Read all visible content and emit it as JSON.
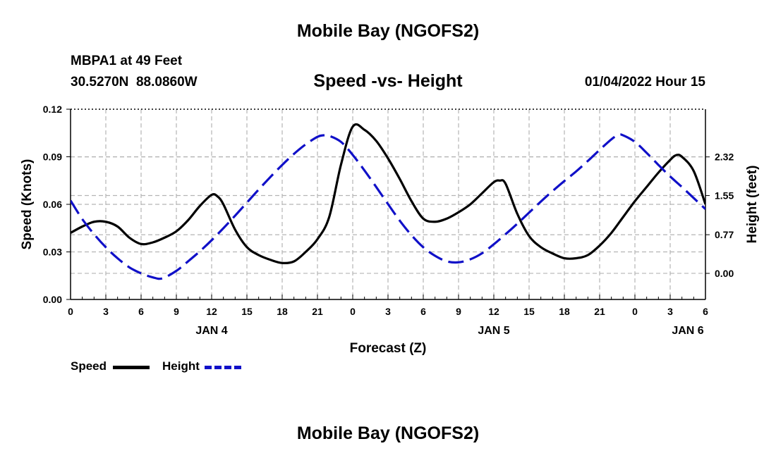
{
  "header": {
    "title": "Mobile Bay (NGOFS2)",
    "station": "MBPA1 at 49 Feet",
    "coords": "30.5270N  88.0860W",
    "chart_title": "Speed -vs- Height",
    "datetime": "01/04/2022 Hour 15"
  },
  "legend": {
    "speed_label": "Speed",
    "height_label": "Height"
  },
  "footer": {
    "title": "Mobile Bay (NGOFS2)"
  },
  "colors": {
    "speed": "#000000",
    "height": "#1010c8",
    "grid": "#b4b4b4"
  },
  "chart_data": {
    "type": "line",
    "title": "Speed -vs- Height",
    "xlabel": "Forecast (Z)",
    "ylabel": "Speed (Knots)",
    "y2label": "Height (feet)",
    "xlim": [
      0,
      54
    ],
    "x_ticks": [
      0,
      3,
      6,
      9,
      12,
      15,
      18,
      21,
      24,
      27,
      30,
      33,
      36,
      39,
      42,
      45,
      48,
      51,
      54
    ],
    "x_tick_labels": [
      "0",
      "3",
      "6",
      "9",
      "12",
      "15",
      "18",
      "21",
      "0",
      "3",
      "6",
      "9",
      "12",
      "15",
      "18",
      "21",
      "0",
      "3",
      "6"
    ],
    "date_labels": [
      {
        "x": 12,
        "label": "JAN 4"
      },
      {
        "x": 36,
        "label": "JAN 5"
      },
      {
        "x": 52.5,
        "label": "JAN 6"
      }
    ],
    "ylim": [
      0,
      0.12
    ],
    "y_ticks": [
      0,
      0.03,
      0.06,
      0.09,
      0.12
    ],
    "y_tick_labels": [
      "0.00",
      "0.03",
      "0.06",
      "0.09",
      "0.12"
    ],
    "y2lim": [
      -0.52,
      3.27
    ],
    "y2_ticks": [
      0.0,
      0.77,
      1.55,
      2.32
    ],
    "y2_tick_labels": [
      "0.00",
      "0.77",
      "1.55",
      "2.32"
    ],
    "grid": true,
    "legend_position": "bottom-left",
    "series": [
      {
        "name": "Speed",
        "axis": "left",
        "style": "solid",
        "x": [
          0,
          1,
          2,
          3,
          4,
          5,
          6,
          7,
          8,
          9,
          10,
          11,
          12,
          12.5,
          13,
          14,
          15,
          16,
          17,
          18,
          19,
          20,
          21,
          22,
          23,
          24,
          25,
          26,
          27,
          28,
          29,
          30,
          31,
          32,
          33,
          34,
          35,
          36,
          36.5,
          37,
          38,
          39,
          40,
          41,
          42,
          43,
          44,
          45,
          46,
          47,
          48,
          49,
          50,
          51,
          51.5,
          52,
          53,
          54
        ],
        "values": [
          0.042,
          0.046,
          0.049,
          0.049,
          0.046,
          0.039,
          0.035,
          0.036,
          0.039,
          0.043,
          0.05,
          0.059,
          0.066,
          0.065,
          0.06,
          0.044,
          0.033,
          0.028,
          0.025,
          0.023,
          0.024,
          0.03,
          0.038,
          0.052,
          0.085,
          0.109,
          0.107,
          0.1,
          0.089,
          0.076,
          0.062,
          0.051,
          0.049,
          0.051,
          0.055,
          0.06,
          0.067,
          0.074,
          0.075,
          0.073,
          0.054,
          0.04,
          0.033,
          0.029,
          0.026,
          0.026,
          0.028,
          0.034,
          0.042,
          0.052,
          0.062,
          0.071,
          0.08,
          0.088,
          0.091,
          0.09,
          0.081,
          0.06
        ]
      },
      {
        "name": "Height",
        "axis": "right",
        "style": "dashed",
        "x": [
          0,
          1,
          2,
          3,
          4,
          5,
          6,
          7,
          7.8,
          9,
          10,
          11,
          12,
          13,
          14,
          15,
          16,
          17,
          18,
          19,
          20,
          21,
          21.5,
          22,
          23,
          24,
          25,
          26,
          27,
          28,
          29,
          30,
          31,
          32,
          33,
          34,
          35,
          36,
          37,
          38,
          39,
          40,
          41,
          42,
          43,
          44,
          45,
          46,
          46.6,
          47,
          48,
          49,
          50,
          51,
          52,
          53,
          54
        ],
        "values": [
          1.45,
          1.08,
          0.78,
          0.52,
          0.3,
          0.12,
          0.0,
          -0.08,
          -0.1,
          0.05,
          0.24,
          0.44,
          0.66,
          0.9,
          1.15,
          1.41,
          1.67,
          1.92,
          2.16,
          2.38,
          2.57,
          2.72,
          2.75,
          2.74,
          2.62,
          2.36,
          2.05,
          1.72,
          1.38,
          1.05,
          0.76,
          0.52,
          0.35,
          0.24,
          0.22,
          0.28,
          0.4,
          0.58,
          0.78,
          0.99,
          1.21,
          1.43,
          1.64,
          1.84,
          2.03,
          2.24,
          2.46,
          2.67,
          2.76,
          2.75,
          2.62,
          2.4,
          2.16,
          1.93,
          1.72,
          1.5,
          1.28
        ]
      }
    ]
  }
}
